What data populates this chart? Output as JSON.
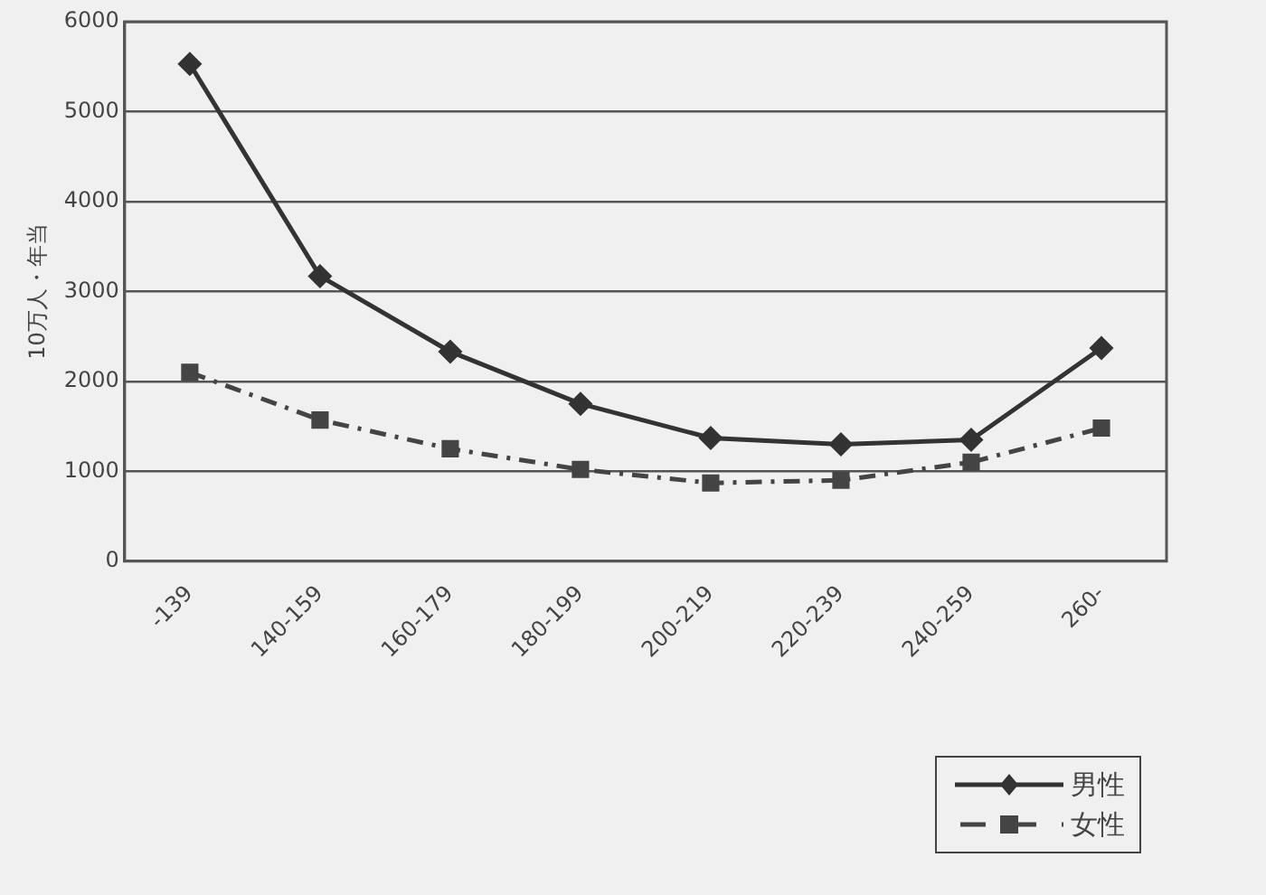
{
  "chart_data": {
    "type": "line",
    "ylabel": "10万人・年当",
    "categories": [
      "-139",
      "140-159",
      "160-179",
      "180-199",
      "200-219",
      "220-239",
      "240-259",
      "260-"
    ],
    "series": [
      {
        "name": "男性",
        "color": "#333333",
        "marker": "diamond",
        "line_style": "solid",
        "values": [
          5530,
          3170,
          2330,
          1750,
          1370,
          1300,
          1350,
          2370
        ]
      },
      {
        "name": "女性",
        "color": "#444444",
        "marker": "square",
        "line_style": "dashed",
        "values": [
          2100,
          1570,
          1250,
          1020,
          870,
          900,
          1100,
          1480
        ]
      }
    ],
    "ylim": [
      0,
      6000
    ],
    "yticks": [
      0,
      1000,
      2000,
      3000,
      4000,
      5000,
      6000
    ],
    "grid": "y",
    "legend": "bottom right"
  }
}
